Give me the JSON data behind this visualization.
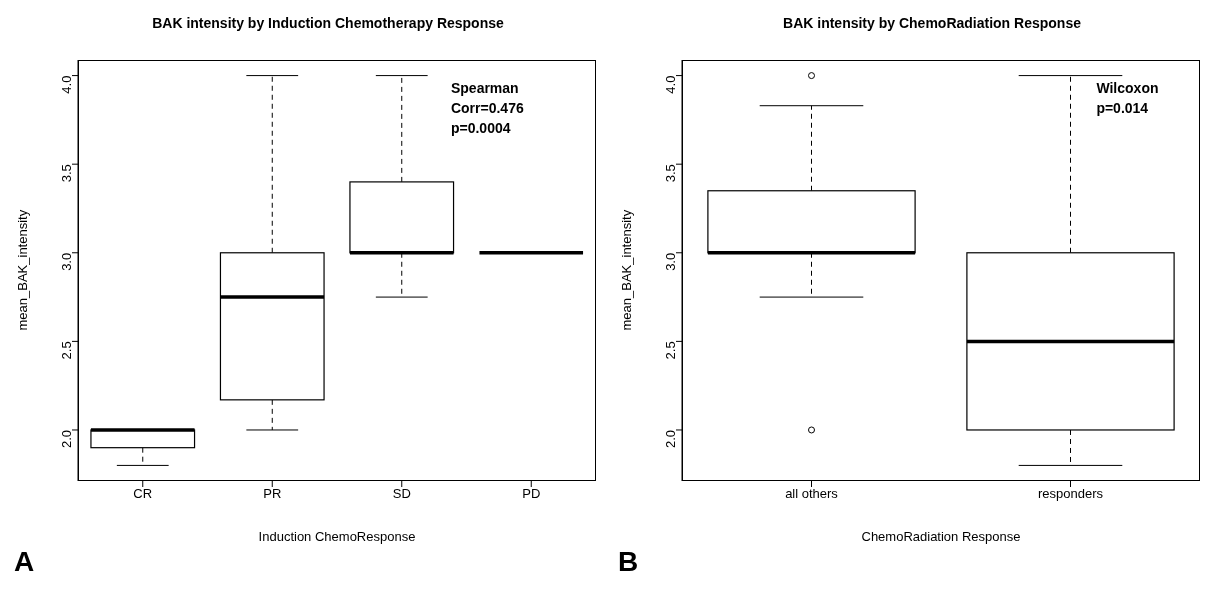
{
  "chart_data": [
    {
      "type": "box",
      "title": "BAK intensity by Induction Chemotherapy Response",
      "xlabel": "Induction ChemoResponse",
      "ylabel": "mean_BAK_intensity",
      "categories": [
        "CR",
        "PR",
        "SD",
        "PD"
      ],
      "boxes": [
        {
          "low": 1.8,
          "q1": 1.9,
          "median": 2.0,
          "q3": 2.0,
          "high": 2.0
        },
        {
          "low": 2.0,
          "q1": 2.17,
          "median": 2.75,
          "q3": 3.0,
          "high": 4.0
        },
        {
          "low": 2.75,
          "q1": 3.0,
          "median": 3.0,
          "q3": 3.4,
          "high": 4.0
        },
        {
          "low": 3.0,
          "q1": 3.0,
          "median": 3.0,
          "q3": 3.0,
          "high": 3.0
        }
      ],
      "ylim": [
        1.712,
        4.088
      ],
      "yticks": [
        {
          "value": 2,
          "label": "2.0"
        },
        {
          "value": 2.5,
          "label": "2.5"
        },
        {
          "value": 3,
          "label": "3.0"
        },
        {
          "value": 3.5,
          "label": "3.5"
        },
        {
          "value": 4,
          "label": "4.0"
        }
      ],
      "annotations": [
        "Spearman\nCorr=0.476\np=0.0004",
        "A"
      ]
    },
    {
      "type": "box",
      "title": "BAK intensity by ChemoRadiation Response",
      "xlabel": "ChemoRadiation Response",
      "ylabel": "mean_BAK_intensity",
      "categories": [
        "all others",
        "responders"
      ],
      "boxes": [
        {
          "low": 2.75,
          "q1": 3.0,
          "median": 3.0,
          "q3": 3.35,
          "high": 3.83,
          "outliers": [
            4.0,
            2.0
          ]
        },
        {
          "low": 1.8,
          "q1": 2.0,
          "median": 2.5,
          "q3": 3.0,
          "high": 4.0
        }
      ],
      "ylim": [
        1.712,
        4.088
      ],
      "yticks": [
        {
          "value": 2,
          "label": "2.0"
        },
        {
          "value": 2.5,
          "label": "2.5"
        },
        {
          "value": 3,
          "label": "3.0"
        },
        {
          "value": 3.5,
          "label": "3.5"
        },
        {
          "value": 4,
          "label": "4.0"
        }
      ],
      "annotations": [
        "Wilcoxon\np=0.014",
        "B"
      ]
    }
  ]
}
